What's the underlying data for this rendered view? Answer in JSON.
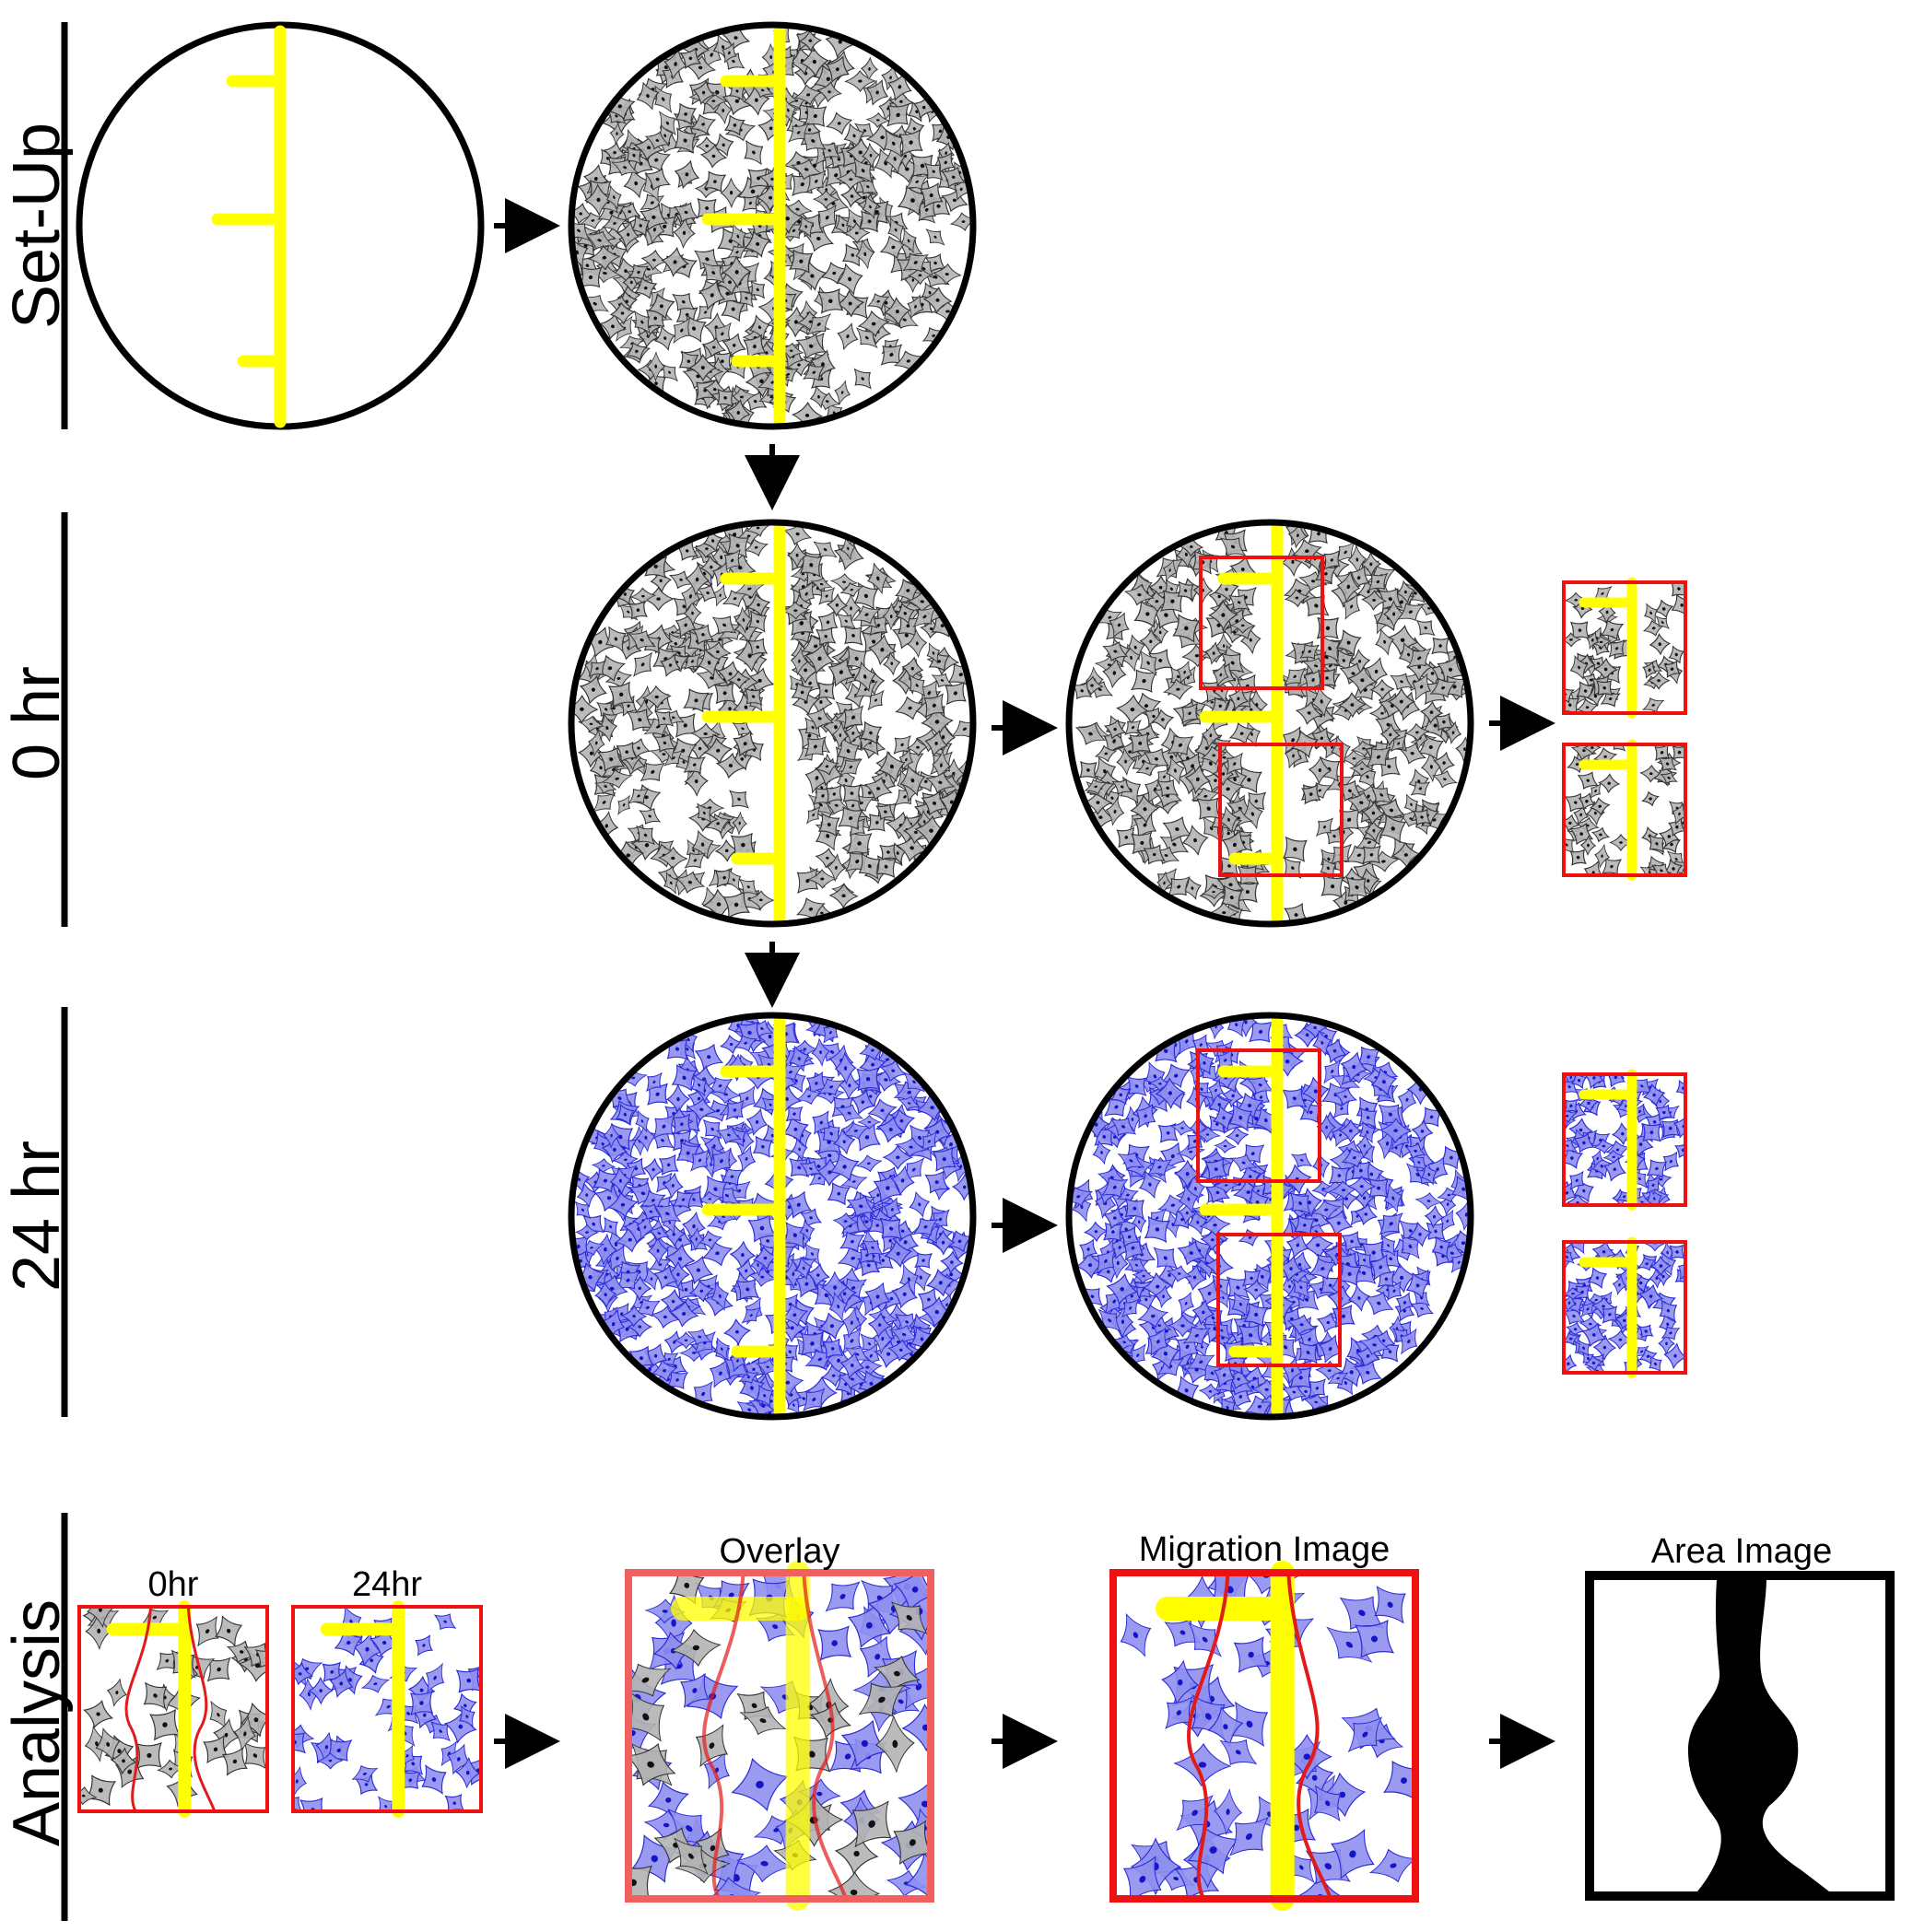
{
  "rows": {
    "setup": "Set-Up",
    "zero": "0 hr",
    "twentyfour": "24 hr",
    "analysis": "Analysis"
  },
  "analysis_titles": {
    "zero": "0hr",
    "twentyfour": "24hr",
    "overlay": "Overlay",
    "migration": "Migration Image",
    "area": "Area Image"
  },
  "colors": {
    "yellow_marker": "#ffff00",
    "gray_cells": "#9a9a9a",
    "blue_cells": "#3a3ae0",
    "roi_box": "#ee1111",
    "outline": "#000000"
  }
}
